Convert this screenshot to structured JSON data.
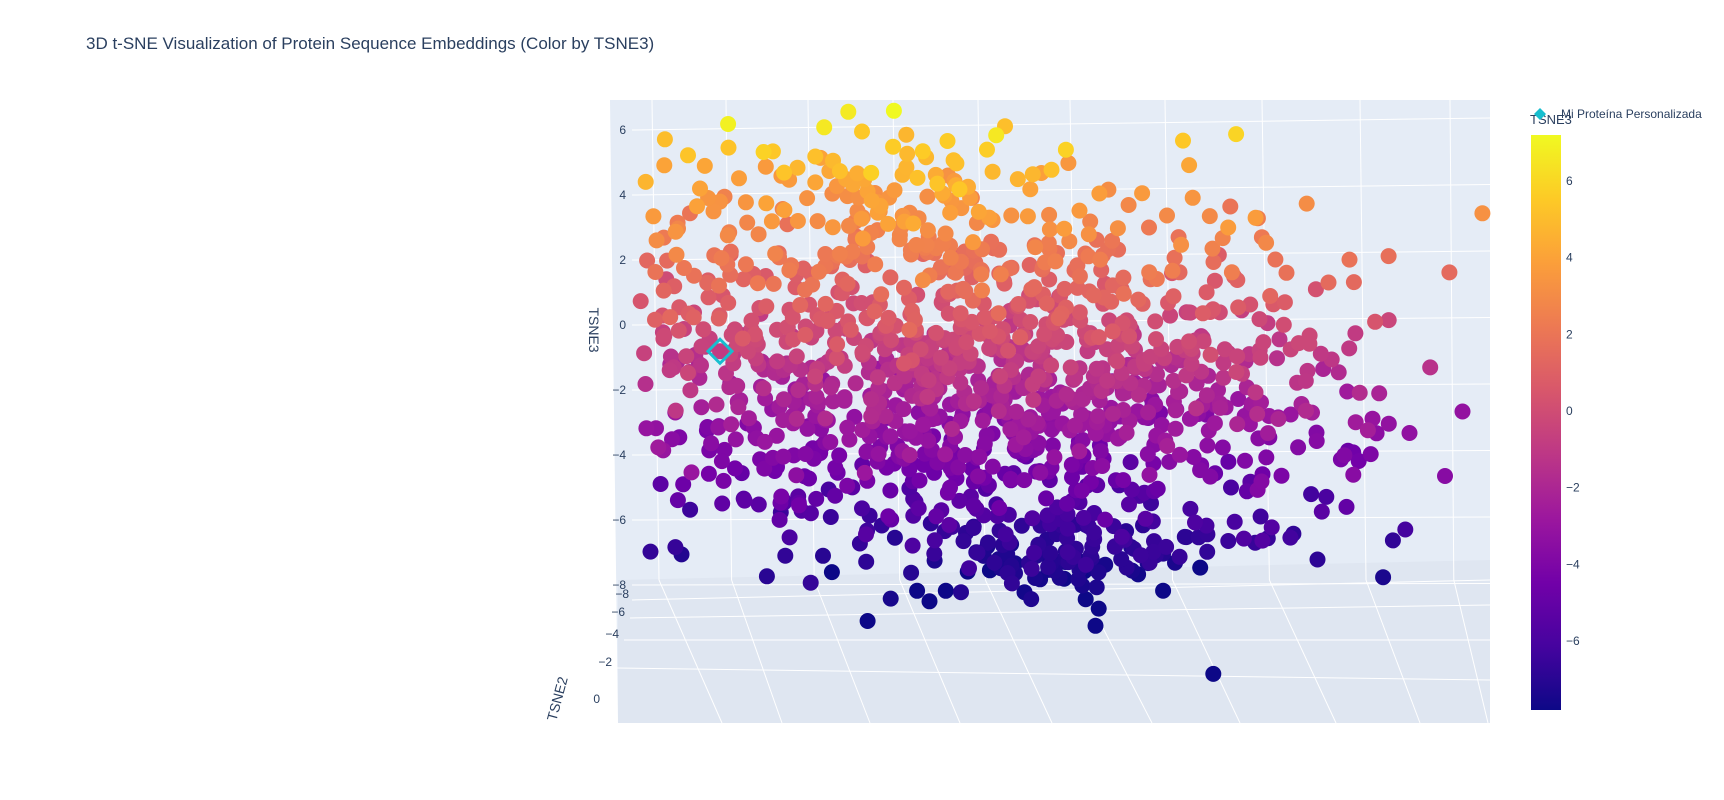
{
  "chart_data": {
    "type": "scatter",
    "title": "3D t-SNE Visualization of Protein Sequence Embeddings (Color by TSNE3)",
    "axes": {
      "z": {
        "title": "TSNE3",
        "ticks": [
          "6",
          "4",
          "2",
          "0",
          "−2",
          "−4",
          "−6",
          "−8"
        ],
        "range": [
          -8,
          7
        ]
      },
      "y": {
        "title": "TSNE2",
        "ticks": [
          "−8",
          "−6",
          "−4",
          "−2",
          "0"
        ]
      },
      "x": {
        "title": ""
      }
    },
    "grid": true,
    "colorbar": {
      "title": "TSNE3",
      "ticks": [
        "6",
        "4",
        "2",
        "0",
        "−2",
        "−4",
        "−6"
      ],
      "range": [
        -7.8,
        7.2
      ],
      "colorscale": [
        "#0d0887",
        "#46039f",
        "#7201a8",
        "#9c179e",
        "#bd3786",
        "#d8576b",
        "#ed7953",
        "#fb9f3a",
        "#fdca26",
        "#f0f921"
      ]
    },
    "legend": {
      "placement": "top-right",
      "entries": [
        "Mi Proteína Personalizada"
      ]
    },
    "highlight": {
      "name": "Mi Proteína Personalizada",
      "marker": "diamond-open",
      "color": "#17becf",
      "tsne3": -0.9
    },
    "series": [
      {
        "name": "",
        "note_count": 1500
      }
    ]
  }
}
